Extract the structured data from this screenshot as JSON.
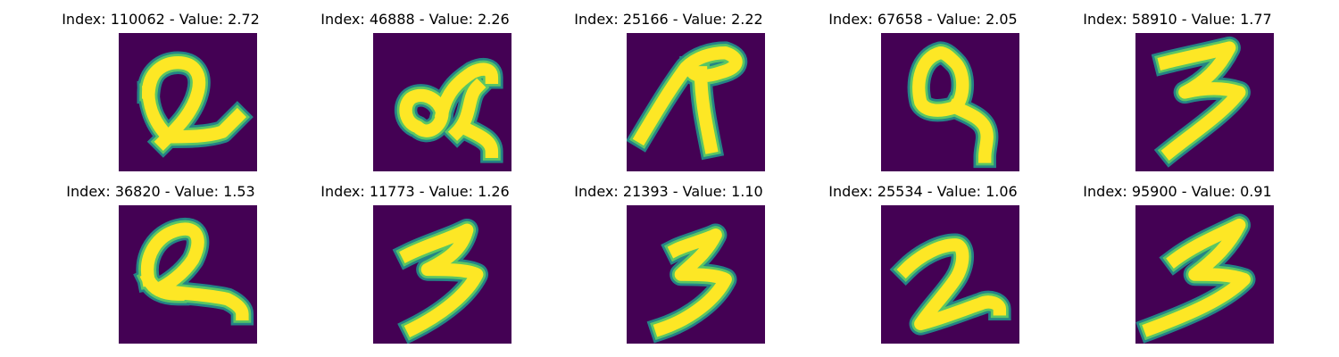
{
  "colors": {
    "background": "#440154",
    "mid": "#21918c",
    "stroke": "#fde725",
    "edge": "#5ec962"
  },
  "images": [
    {
      "title": "Index: 110062 - Value: 2.72",
      "index": 110062,
      "value": 2.72,
      "icon": "handwritten-digit-2-icon"
    },
    {
      "title": "Index: 46888 - Value: 2.26",
      "index": 46888,
      "value": 2.26,
      "icon": "handwritten-digit-scribble-icon"
    },
    {
      "title": "Index: 25166 - Value: 2.22",
      "index": 25166,
      "value": 2.22,
      "icon": "handwritten-digit-7-icon"
    },
    {
      "title": "Index: 67658 - Value: 2.05",
      "index": 67658,
      "value": 2.05,
      "icon": "handwritten-digit-9-icon"
    },
    {
      "title": "Index: 58910 - Value: 1.77",
      "index": 58910,
      "value": 1.77,
      "icon": "handwritten-digit-3-icon"
    },
    {
      "title": "Index: 36820 - Value: 1.53",
      "index": 36820,
      "value": 1.53,
      "icon": "handwritten-digit-2-icon"
    },
    {
      "title": "Index: 11773 - Value: 1.26",
      "index": 11773,
      "value": 1.26,
      "icon": "handwritten-digit-3-icon"
    },
    {
      "title": "Index: 21393 - Value: 1.10",
      "index": 21393,
      "value": 1.1,
      "icon": "handwritten-digit-3-icon"
    },
    {
      "title": "Index: 25534 - Value: 1.06",
      "index": 25534,
      "value": 1.06,
      "icon": "handwritten-digit-2-icon"
    },
    {
      "title": "Index: 95900 - Value: 0.91",
      "index": 95900,
      "value": 0.91,
      "icon": "handwritten-digit-3-icon"
    }
  ]
}
